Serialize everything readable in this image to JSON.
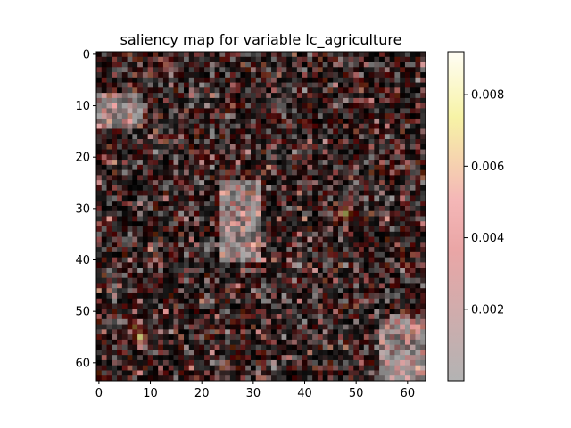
{
  "chart_data": {
    "type": "heatmap",
    "title": "saliency map for variable lc_agriculture",
    "xlabel": "",
    "ylabel": "",
    "grid_size": [
      64,
      64
    ],
    "x_ticks": [
      0,
      10,
      20,
      30,
      40,
      50,
      60
    ],
    "y_ticks": [
      0,
      10,
      20,
      30,
      40,
      50,
      60
    ],
    "x_range": [
      -0.5,
      63.5
    ],
    "y_range": [
      63.5,
      -0.5
    ],
    "background_layer": "grayscale",
    "overlay_colormap": "hot",
    "overlay_alpha": 0.3,
    "colorbar": {
      "range": [
        0.0,
        0.0092
      ],
      "ticks": [
        0.002,
        0.004,
        0.006,
        0.008
      ],
      "tick_labels": [
        "0.002",
        "0.004",
        "0.006",
        "0.008"
      ],
      "colormap": "hot",
      "alpha": 0.3
    },
    "bright_background_regions": [
      {
        "region": "upper-left",
        "rows": [
          8,
          14
        ],
        "cols": [
          0,
          8
        ]
      },
      {
        "region": "bottom-right",
        "rows": [
          52,
          63
        ],
        "cols": [
          55,
          63
        ]
      },
      {
        "region": "left-middle",
        "rows": [
          25,
          40
        ],
        "cols": [
          24,
          31
        ]
      }
    ],
    "saliency_hotspots": [
      {
        "row": 31,
        "col": 48,
        "value": 0.0072
      },
      {
        "row": 55,
        "col": 8,
        "value": 0.0068
      },
      {
        "row": 53,
        "col": 7,
        "value": 0.0055
      },
      {
        "row": 2,
        "col": 13,
        "value": 0.004
      },
      {
        "row": 20,
        "col": 20,
        "value": 0.0035
      }
    ]
  }
}
